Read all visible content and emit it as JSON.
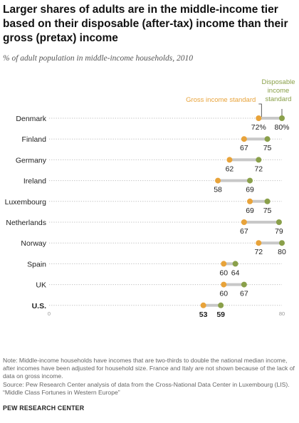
{
  "title": "Larger shares of adults are in the middle-income tier based on their disposable (after-tax) income than their gross (pretax) income",
  "subtitle": "% of adult population in middle-income households, 2010",
  "notes": {
    "note": "Note: Middle-income households have incomes that are two-thirds to double the national median income, after incomes have been adjusted for household size. France and Italy are not shown because of the lack of data on gross income.",
    "source": "Source: Pew Research Center analysis of data from the Cross-National Data Center in Luxembourg (LIS).",
    "report": "“Middle Class Fortunes in Western Europe”"
  },
  "brand": "PEW RESEARCH CENTER",
  "colors": {
    "gross": "#e8a33a",
    "disposable": "#8aa04a",
    "connector": "#c8c8c8",
    "dotted_line": "#bdbdbd"
  },
  "chart_data": {
    "type": "dot",
    "categories": [
      "Denmark",
      "Finland",
      "Germany",
      "Ireland",
      "Luxembourg",
      "Netherlands",
      "Norway",
      "Spain",
      "UK",
      "U.S."
    ],
    "series": [
      {
        "name": "Gross income standard",
        "values": [
          72,
          67,
          62,
          58,
          69,
          67,
          72,
          60,
          60,
          53
        ]
      },
      {
        "name": "Disposable income standard",
        "values": [
          80,
          75,
          72,
          69,
          75,
          79,
          80,
          64,
          67,
          59
        ]
      }
    ],
    "value_labels": {
      "gross": [
        "72%",
        "67",
        "62",
        "58",
        "69",
        "67",
        "72",
        "60",
        "60",
        "53"
      ],
      "disposable": [
        "80%",
        "75",
        "72",
        "69",
        "75",
        "79",
        "80",
        "64",
        "67",
        "59"
      ]
    },
    "xlim": [
      0,
      80
    ],
    "axis_tick_labels": [
      "0",
      "80"
    ],
    "legend": {
      "gross": "Gross income standard",
      "disposable_lines": [
        "Disposable",
        "income",
        "standard"
      ]
    },
    "highlight": "U.S.",
    "grid": false
  }
}
